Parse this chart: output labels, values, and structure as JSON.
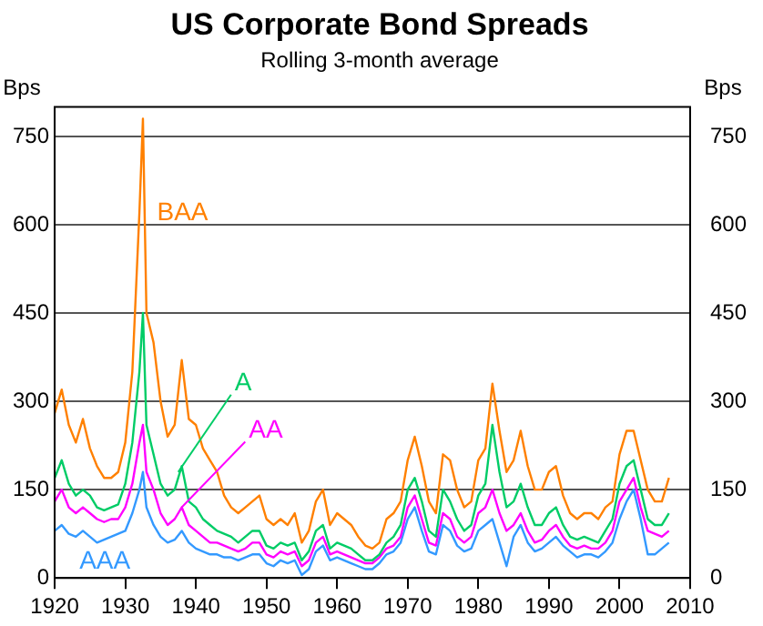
{
  "chart_data": {
    "type": "line",
    "title": "US Corporate Bond Spreads",
    "subtitle": "Rolling 3-month average",
    "ylabel": "Bps",
    "y2label": "Bps",
    "x": [
      1920,
      1921,
      1922,
      1923,
      1924,
      1925,
      1926,
      1927,
      1928,
      1929,
      1930,
      1931,
      1932,
      1932.5,
      1933,
      1934,
      1935,
      1936,
      1937,
      1938,
      1939,
      1940,
      1941,
      1942,
      1943,
      1944,
      1945,
      1946,
      1947,
      1948,
      1949,
      1950,
      1951,
      1952,
      1953,
      1954,
      1955,
      1956,
      1957,
      1958,
      1959,
      1960,
      1961,
      1962,
      1963,
      1964,
      1965,
      1966,
      1967,
      1968,
      1969,
      1970,
      1971,
      1972,
      1973,
      1974,
      1975,
      1976,
      1977,
      1978,
      1979,
      1980,
      1981,
      1982,
      1983,
      1984,
      1985,
      1986,
      1987,
      1988,
      1989,
      1990,
      1991,
      1992,
      1993,
      1994,
      1995,
      1996,
      1997,
      1998,
      1999,
      2000,
      2001,
      2002,
      2003,
      2004,
      2005,
      2006,
      2007
    ],
    "series": [
      {
        "name": "BAA",
        "color": "#ff8000",
        "values": [
          280,
          320,
          260,
          230,
          270,
          220,
          190,
          170,
          170,
          180,
          230,
          350,
          620,
          780,
          450,
          400,
          300,
          240,
          260,
          370,
          270,
          260,
          220,
          200,
          180,
          140,
          120,
          110,
          120,
          130,
          140,
          100,
          90,
          100,
          90,
          110,
          60,
          80,
          130,
          150,
          90,
          110,
          100,
          90,
          70,
          55,
          50,
          60,
          100,
          110,
          130,
          200,
          240,
          190,
          130,
          110,
          210,
          200,
          150,
          120,
          130,
          200,
          220,
          330,
          250,
          180,
          200,
          250,
          190,
          150,
          150,
          180,
          190,
          140,
          110,
          100,
          110,
          110,
          100,
          120,
          130,
          210,
          250,
          250,
          200,
          150,
          130,
          130,
          170
        ]
      },
      {
        "name": "A",
        "color": "#00cc66",
        "values": [
          170,
          200,
          160,
          140,
          150,
          140,
          120,
          115,
          120,
          125,
          160,
          230,
          350,
          450,
          260,
          210,
          160,
          140,
          150,
          190,
          130,
          120,
          100,
          90,
          80,
          75,
          70,
          60,
          70,
          80,
          80,
          55,
          50,
          60,
          55,
          60,
          30,
          45,
          80,
          90,
          50,
          60,
          55,
          50,
          40,
          30,
          30,
          40,
          60,
          70,
          90,
          150,
          170,
          130,
          80,
          70,
          150,
          130,
          100,
          80,
          90,
          140,
          160,
          260,
          180,
          120,
          130,
          160,
          120,
          90,
          90,
          110,
          120,
          90,
          70,
          65,
          70,
          65,
          60,
          80,
          100,
          160,
          190,
          200,
          150,
          100,
          90,
          90,
          110
        ]
      },
      {
        "name": "AA",
        "color": "#ff00ff",
        "values": [
          130,
          150,
          120,
          110,
          120,
          110,
          100,
          95,
          100,
          100,
          120,
          160,
          230,
          260,
          180,
          150,
          110,
          90,
          100,
          120,
          90,
          80,
          70,
          60,
          60,
          55,
          50,
          45,
          50,
          60,
          60,
          40,
          35,
          45,
          40,
          45,
          20,
          30,
          60,
          70,
          40,
          45,
          40,
          35,
          30,
          25,
          25,
          35,
          50,
          55,
          70,
          120,
          140,
          100,
          60,
          55,
          110,
          100,
          70,
          60,
          70,
          110,
          120,
          150,
          110,
          80,
          90,
          110,
          80,
          60,
          65,
          80,
          90,
          70,
          55,
          50,
          55,
          50,
          50,
          60,
          80,
          130,
          150,
          170,
          120,
          80,
          75,
          70,
          80
        ]
      },
      {
        "name": "AAA",
        "color": "#3399ff",
        "values": [
          80,
          90,
          75,
          70,
          80,
          70,
          60,
          65,
          70,
          75,
          80,
          110,
          150,
          180,
          120,
          90,
          70,
          60,
          65,
          80,
          60,
          50,
          45,
          40,
          40,
          35,
          35,
          30,
          35,
          40,
          40,
          25,
          20,
          30,
          25,
          30,
          5,
          15,
          45,
          55,
          30,
          35,
          30,
          25,
          20,
          15,
          15,
          25,
          40,
          45,
          60,
          100,
          120,
          80,
          45,
          40,
          90,
          80,
          55,
          45,
          50,
          80,
          90,
          100,
          60,
          20,
          70,
          90,
          60,
          45,
          50,
          60,
          70,
          55,
          45,
          35,
          40,
          40,
          35,
          45,
          60,
          100,
          130,
          150,
          100,
          40,
          40,
          50,
          60
        ]
      }
    ],
    "xlim": [
      1920,
      2010
    ],
    "xticks": [
      1920,
      1930,
      1940,
      1950,
      1960,
      1970,
      1980,
      1990,
      2000,
      2010
    ],
    "ylim": [
      0,
      800
    ],
    "yticks": [
      0,
      150,
      300,
      450,
      600,
      750
    ],
    "y2lim": [
      0,
      800
    ],
    "y2ticks": [
      0,
      150,
      300,
      450,
      600,
      750
    ],
    "grid": "y",
    "legend": false,
    "marker": "none",
    "line_style": "solid"
  }
}
